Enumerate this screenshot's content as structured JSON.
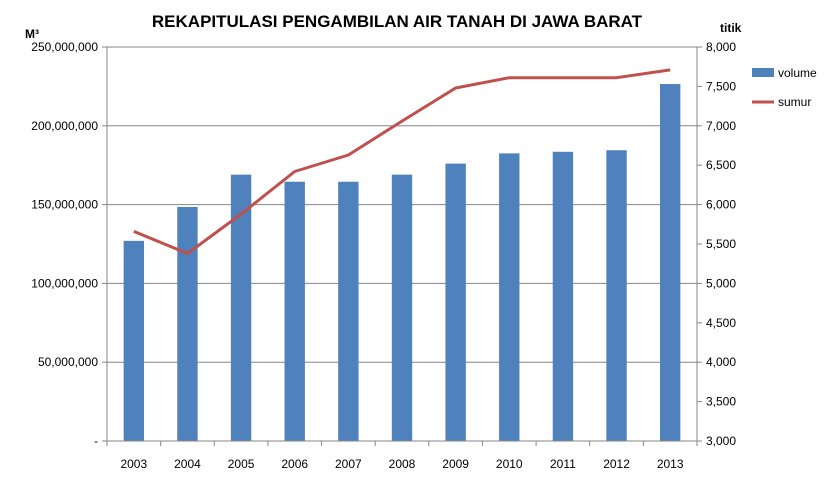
{
  "chart_data": {
    "type": "bar",
    "title": "REKAPITULASI PENGAMBILAN AIR TANAH DI JAWA BARAT",
    "categories": [
      "2003",
      "2004",
      "2005",
      "2006",
      "2007",
      "2008",
      "2009",
      "2010",
      "2011",
      "2012",
      "2013"
    ],
    "y_left": {
      "unit_label": "M³",
      "ylim": [
        0,
        250000000
      ],
      "ticks": [
        0,
        50000000,
        100000000,
        150000000,
        200000000,
        250000000
      ],
      "tick_labels": [
        "-",
        "50,000,000",
        "100,000,000",
        "150,000,000",
        "200,000,000",
        "250,000,000"
      ]
    },
    "y_right": {
      "unit_label": "titik",
      "ylim": [
        3000,
        8000
      ],
      "ticks": [
        3000,
        3500,
        4000,
        4500,
        5000,
        5500,
        6000,
        6500,
        7000,
        7500,
        8000
      ],
      "tick_labels": [
        "3,000",
        "3,500",
        "4,000",
        "4,500",
        "5,000",
        "5,500",
        "6,000",
        "6,500",
        "7,000",
        "7,500",
        "8,000"
      ]
    },
    "series": [
      {
        "name": "volume",
        "kind": "bar",
        "axis": "left",
        "color": "#4f81bd",
        "values": [
          127000000,
          148500000,
          169000000,
          164500000,
          164500000,
          169000000,
          176000000,
          182500000,
          183500000,
          184500000,
          226500000
        ]
      },
      {
        "name": "sumur",
        "kind": "line",
        "axis": "right",
        "color": "#c0504d",
        "values": [
          5660,
          5380,
          5880,
          6420,
          6630,
          7060,
          7480,
          7610,
          7610,
          7610,
          7710
        ]
      }
    ],
    "legend_position": "right",
    "grid": true
  }
}
